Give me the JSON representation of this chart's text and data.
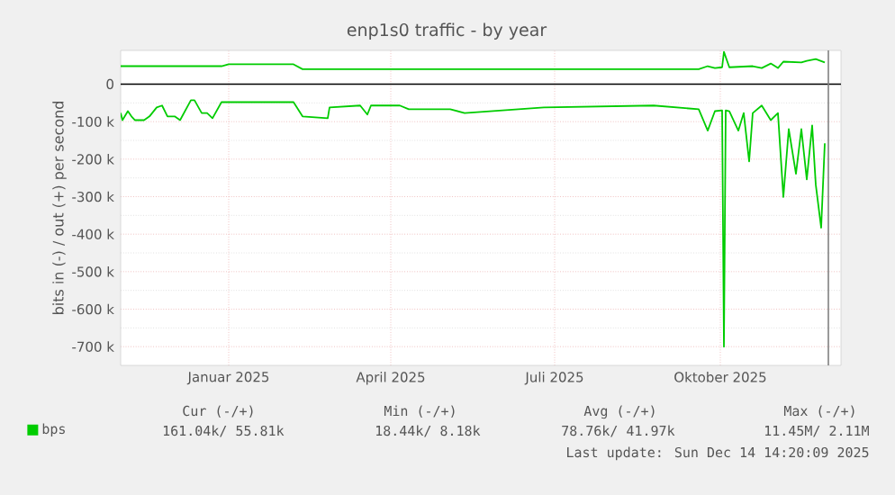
{
  "chart_data": {
    "type": "line",
    "title": "enp1s0 traffic - by year",
    "ylabel": "bits in (-) / out (+) per second",
    "xlim": [
      "2024-11-16",
      "2025-12-21"
    ],
    "xticks": [
      {
        "value": "2025-01-15",
        "label": "Januar 2025"
      },
      {
        "value": "2025-04-15",
        "label": "April 2025"
      },
      {
        "value": "2025-07-15",
        "label": "Juli 2025"
      },
      {
        "value": "2025-10-15",
        "label": "Oktober 2025"
      }
    ],
    "ylim": [
      -750000,
      90000
    ],
    "yticks": [
      {
        "value": -700000,
        "label": "-700 k"
      },
      {
        "value": -600000,
        "label": "-600 k"
      },
      {
        "value": -500000,
        "label": "-500 k"
      },
      {
        "value": -400000,
        "label": "-400 k"
      },
      {
        "value": -300000,
        "label": "-300 k"
      },
      {
        "value": -200000,
        "label": "-200 k"
      },
      {
        "value": -100000,
        "label": "-100 k"
      },
      0
    ],
    "grid": true,
    "legend": "bottom left",
    "series": [
      {
        "name": "bps",
        "color": "#00cc00",
        "x": [
          "2024-11-16",
          "2025-01-11",
          "2025-01-15",
          "2025-02-20",
          "2025-02-25",
          "2025-10-03",
          "2025-10-08",
          "2025-10-12",
          "2025-10-16",
          "2025-10-17",
          "2025-10-20",
          "2025-11-02",
          "2025-11-07",
          "2025-11-12",
          "2025-11-16",
          "2025-11-19",
          "2025-11-29",
          "2025-12-02",
          "2025-12-07",
          "2025-12-12"
        ],
        "values": [
          48000,
          48000,
          53000,
          53000,
          40000,
          40000,
          48000,
          43000,
          45000,
          86000,
          45000,
          48000,
          43000,
          55000,
          43000,
          60000,
          58000,
          62000,
          67000,
          58000
        ]
      },
      {
        "color": "#00cc00",
        "x": [
          "2024-11-16",
          "2024-11-17",
          "2024-11-20",
          "2024-11-22",
          "2024-11-24",
          "2024-11-29",
          "2024-12-02",
          "2024-12-06",
          "2024-12-09",
          "2024-12-12",
          "2024-12-16",
          "2024-12-19",
          "2024-12-25",
          "2024-12-27",
          "2024-12-31",
          "2025-01-03",
          "2025-01-06",
          "2025-01-11",
          "2025-01-15",
          "2025-02-07",
          "2025-02-20",
          "2025-02-25",
          "2025-03-11",
          "2025-03-12",
          "2025-03-29",
          "2025-04-02",
          "2025-04-04",
          "2025-04-20",
          "2025-04-25",
          "2025-05-18",
          "2025-05-26",
          "2025-07-09",
          "2025-09-08",
          "2025-10-03",
          "2025-10-08",
          "2025-10-12",
          "2025-10-16",
          "2025-10-17",
          "2025-10-18",
          "2025-10-20",
          "2025-10-25",
          "2025-10-28",
          "2025-10-31",
          "2025-11-02",
          "2025-11-07",
          "2025-11-12",
          "2025-11-16",
          "2025-11-19",
          "2025-11-22",
          "2025-11-26",
          "2025-11-29",
          "2025-12-02",
          "2025-12-05",
          "2025-12-07",
          "2025-12-10",
          "2025-12-12"
        ],
        "values": [
          -77000,
          -96000,
          -72000,
          -86000,
          -96000,
          -96000,
          -86000,
          -62000,
          -57000,
          -86000,
          -86000,
          -96000,
          -43000,
          -43000,
          -77000,
          -77000,
          -91000,
          -48000,
          -48000,
          -48000,
          -48000,
          -86000,
          -91000,
          -62000,
          -57000,
          -81000,
          -57000,
          -57000,
          -67000,
          -67000,
          -77000,
          -62000,
          -57000,
          -67000,
          -124000,
          -72000,
          -70000,
          -700000,
          -70000,
          -72000,
          -124000,
          -77000,
          -206000,
          -77000,
          -57000,
          -96000,
          -77000,
          -301000,
          -120000,
          -239000,
          -120000,
          -254000,
          -110000,
          -268000,
          -383000,
          -158000
        ]
      }
    ],
    "ref_lines": [
      {
        "axis": "y",
        "value": 0,
        "color": "#000000"
      },
      {
        "axis": "x",
        "value": "2025-12-14",
        "color": "#808080"
      }
    ],
    "annotations": [
      "Cur (-/+)",
      "Min (-/+)",
      "Avg (-/+)",
      "Max (-/+)",
      "161.04k/  55.81k",
      "18.44k/   8.18k",
      "78.76k/  41.97k",
      "11.45M/   2.11M",
      "Last update: Sun Dec 14 14:20:09 2025"
    ]
  }
}
